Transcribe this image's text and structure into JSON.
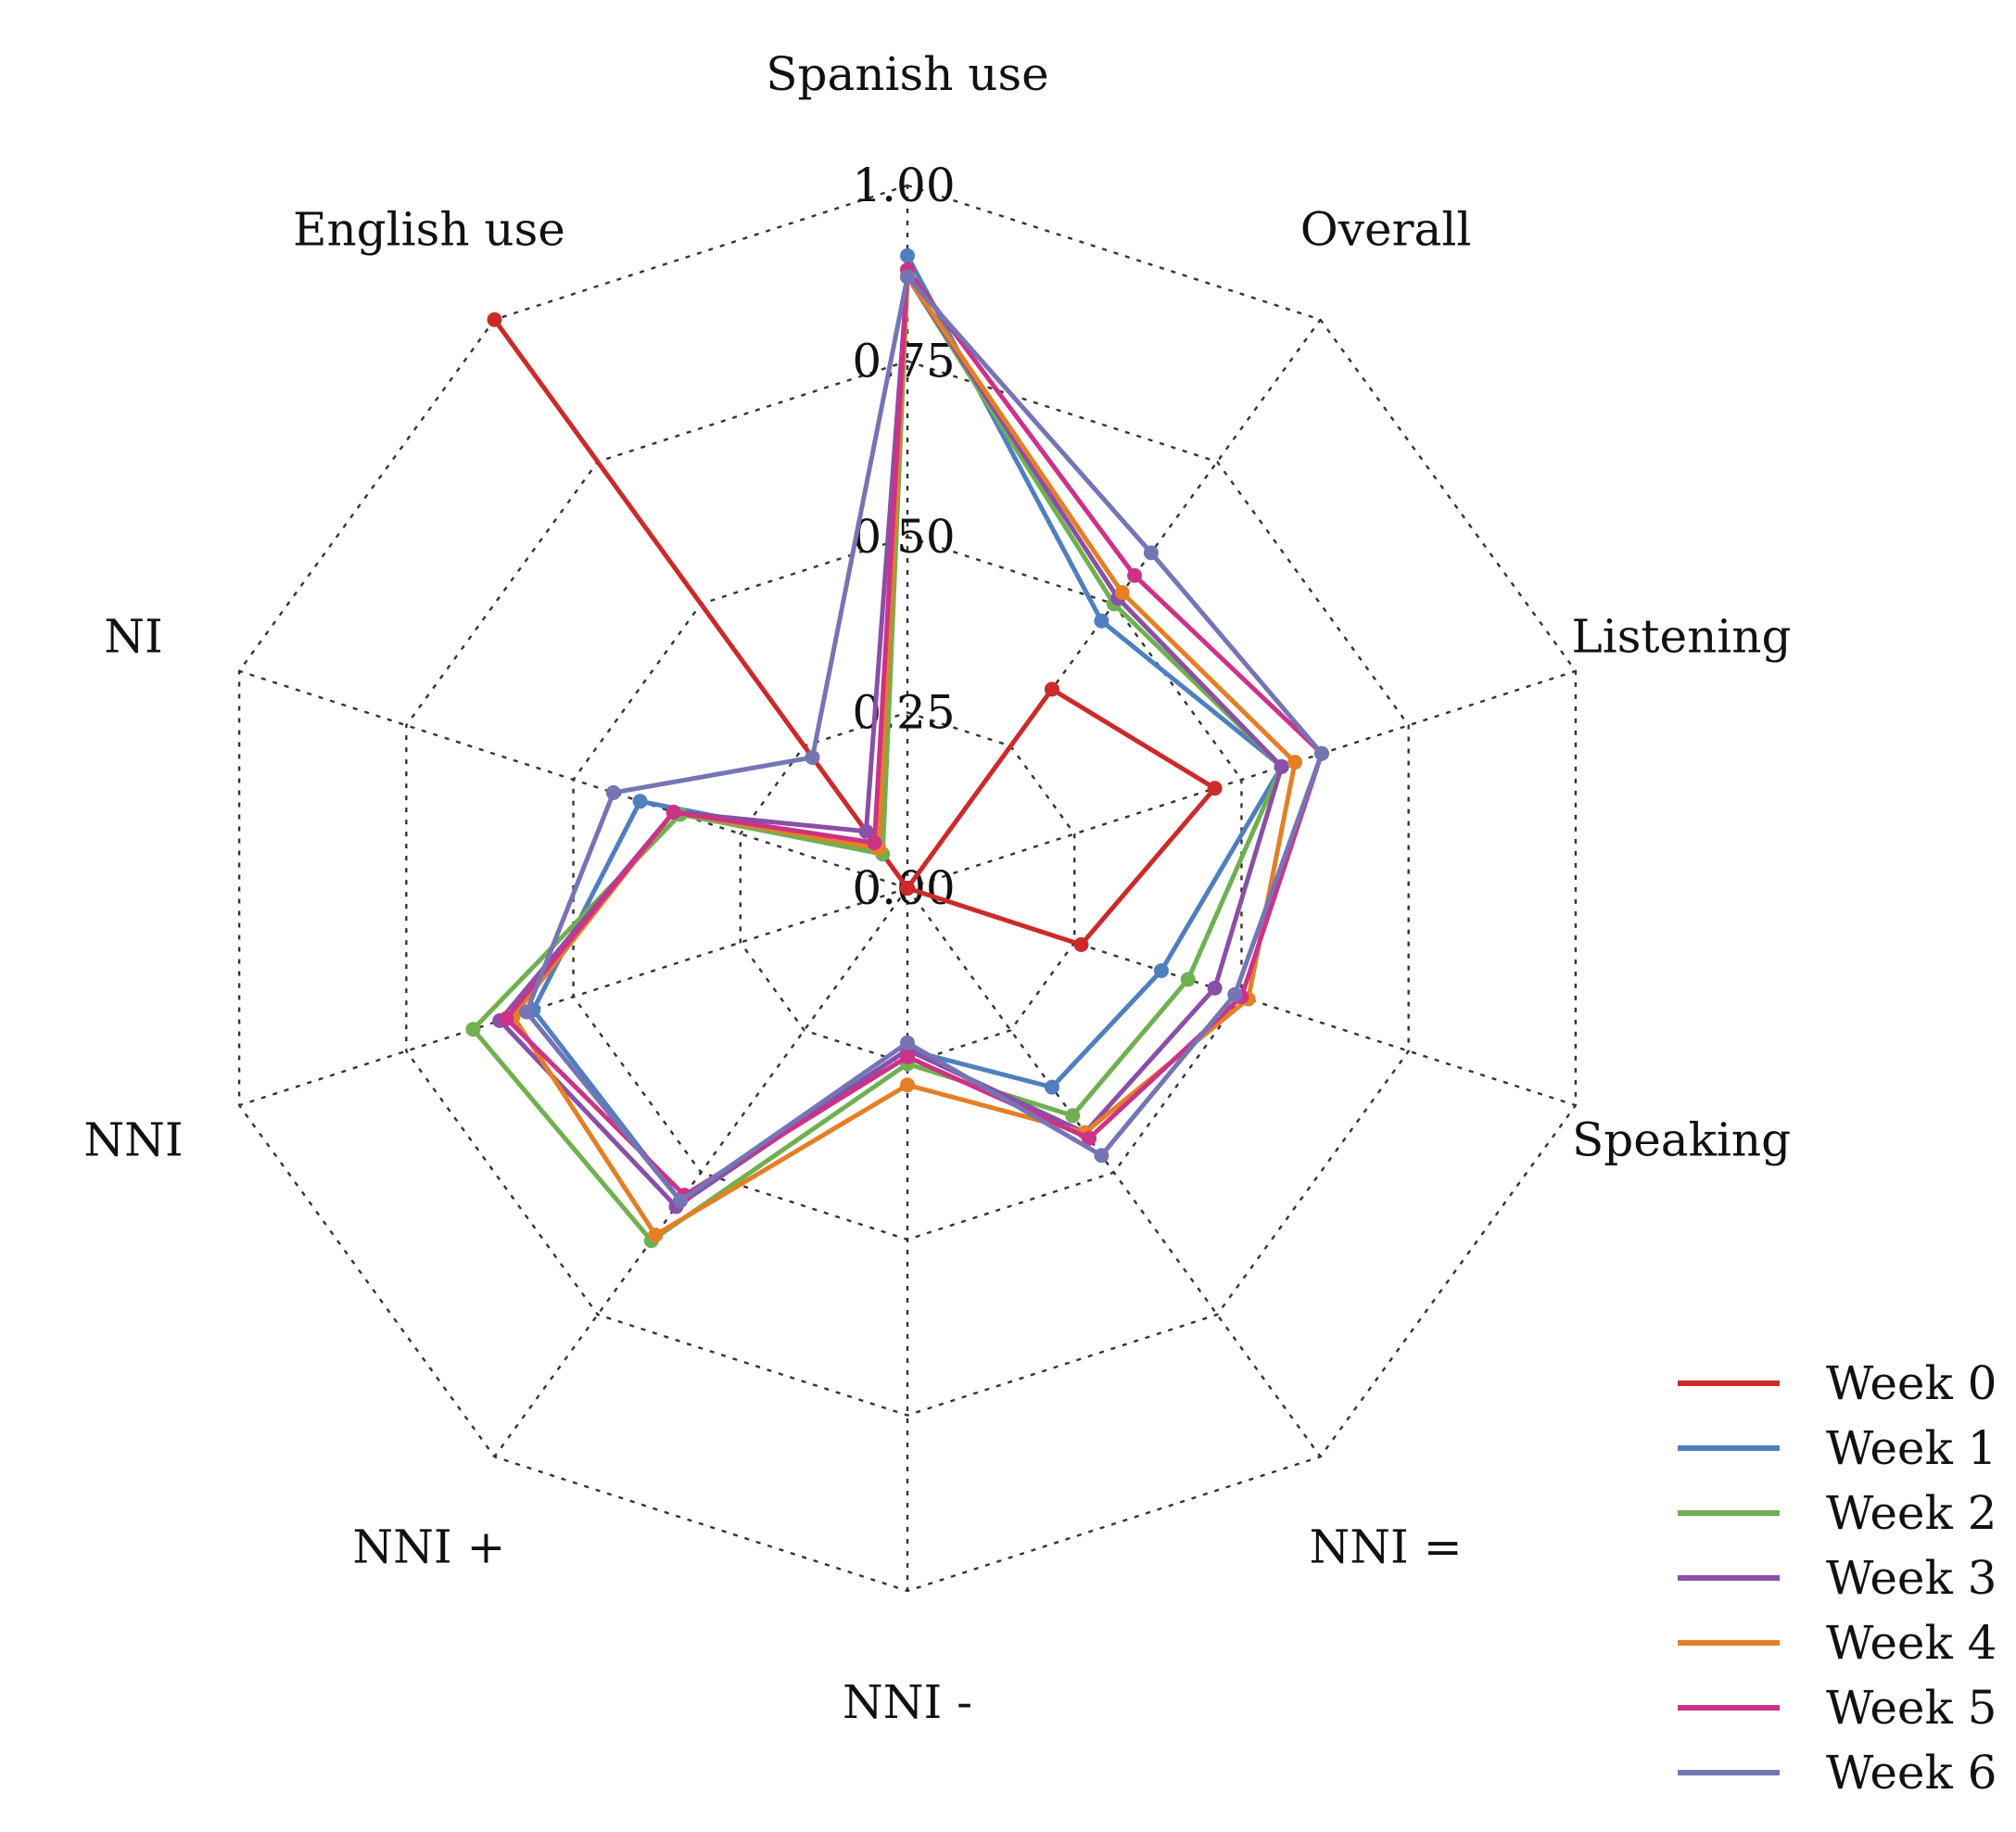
{
  "chart_data": {
    "type": "radar",
    "axes": [
      "Spanish use",
      "Overall",
      "Listening",
      "Speaking",
      "NNI =",
      "NNI -",
      "NNI +",
      "NNI",
      "NI",
      "English use"
    ],
    "rlim": [
      0,
      1
    ],
    "ticks": [
      0,
      0.25,
      0.5,
      0.75,
      1
    ],
    "tick_labels": [
      "0.00",
      "0.25",
      "0.50",
      "0.75",
      "1.00"
    ],
    "grid": true,
    "legend_position": "bottom-right",
    "series": [
      {
        "name": "Week 0",
        "color": "#cc2a2a",
        "values": [
          0.0,
          0.35,
          0.46,
          0.26,
          0.0,
          0.0,
          0.0,
          0.0,
          0.0,
          1.0
        ]
      },
      {
        "name": "Week 1",
        "color": "#4f7fbf",
        "values": [
          0.9,
          0.47,
          0.56,
          0.38,
          0.35,
          0.23,
          0.55,
          0.56,
          0.4,
          0.07
        ]
      },
      {
        "name": "Week 2",
        "color": "#6fb050",
        "values": [
          0.87,
          0.5,
          0.56,
          0.42,
          0.4,
          0.25,
          0.62,
          0.65,
          0.34,
          0.06
        ]
      },
      {
        "name": "Week 3",
        "color": "#8a4fa6",
        "values": [
          0.87,
          0.51,
          0.56,
          0.46,
          0.43,
          0.23,
          0.56,
          0.61,
          0.35,
          0.1
        ]
      },
      {
        "name": "Week 4",
        "color": "#e47f25",
        "values": [
          0.87,
          0.52,
          0.58,
          0.51,
          0.43,
          0.28,
          0.61,
          0.59,
          0.35,
          0.07
        ]
      },
      {
        "name": "Week 5",
        "color": "#cc3388",
        "values": [
          0.88,
          0.55,
          0.62,
          0.5,
          0.44,
          0.24,
          0.54,
          0.6,
          0.35,
          0.08
        ]
      },
      {
        "name": "Week 6",
        "color": "#7575b5",
        "values": [
          0.87,
          0.59,
          0.62,
          0.49,
          0.47,
          0.22,
          0.55,
          0.57,
          0.44,
          0.23
        ]
      }
    ]
  }
}
